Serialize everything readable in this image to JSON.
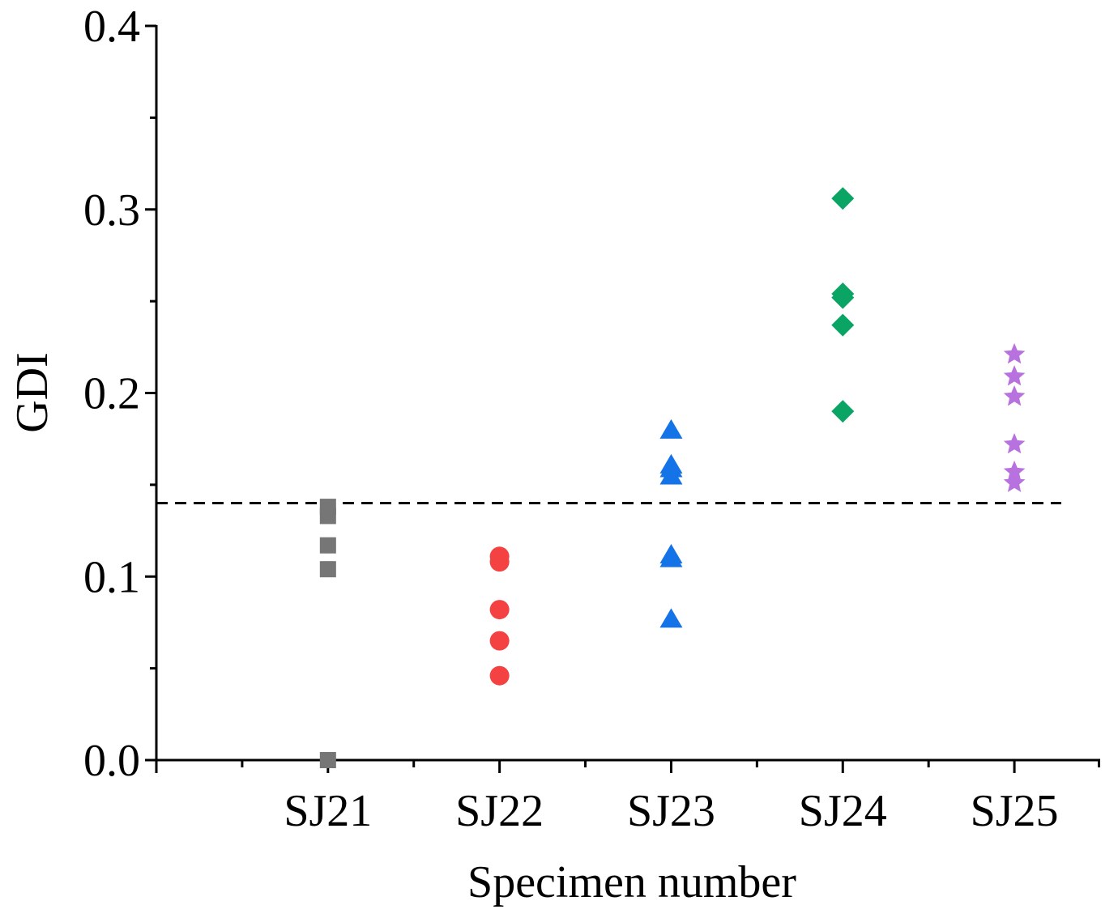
{
  "chart_data": {
    "type": "scatter",
    "x_label": "Specimen number",
    "y_label": "GDI",
    "categories": [
      "SJ21",
      "SJ22",
      "SJ23",
      "SJ24",
      "SJ25"
    ],
    "points": [
      [
        0.138,
        0.133,
        0.117,
        0.104,
        0.0
      ],
      [
        0.111,
        0.108,
        0.082,
        0.065,
        0.046
      ],
      [
        0.18,
        0.161,
        0.159,
        0.155,
        0.112,
        0.11,
        0.077
      ],
      [
        0.306,
        0.254,
        0.252,
        0.237,
        0.19
      ],
      [
        0.221,
        0.209,
        0.198,
        0.172,
        0.157,
        0.151
      ]
    ],
    "colors": [
      "#767676",
      "#f44141",
      "#1473e6",
      "#0aa564",
      "#b872e0"
    ],
    "markers": [
      "square",
      "circle",
      "triangle",
      "diamond",
      "star"
    ],
    "ylim": [
      0,
      0.4
    ],
    "yticks": [
      {
        "value": 0,
        "label": "0.0"
      },
      0.1,
      0.2,
      0.3,
      0.4
    ],
    "yminor": [
      0.05,
      0.15,
      0.25,
      0.35
    ],
    "threshold": 0.14
  }
}
